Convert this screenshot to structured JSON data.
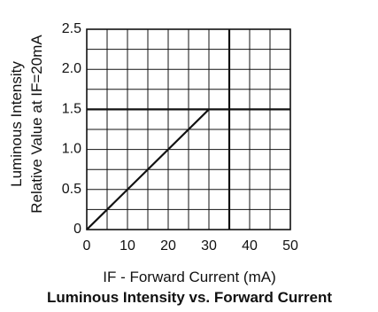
{
  "chart_data": {
    "type": "line",
    "title": "Luminous Intensity vs. Forward Current",
    "xlabel": "IF - Forward Current (mA)",
    "ylabel_line1": "Luminous Intensity",
    "ylabel_line2": "Relative Value at IF=20mA",
    "xlim": [
      0,
      50
    ],
    "ylim": [
      0,
      2.5
    ],
    "x_ticks": [
      "0",
      "10",
      "20",
      "30",
      "40",
      "50"
    ],
    "y_ticks": [
      "0",
      "0.5",
      "1.0",
      "1.5",
      "2.0",
      "2.5"
    ],
    "grid": true,
    "series": [
      {
        "x": [
          0,
          30
        ],
        "y": [
          0,
          1.5
        ]
      }
    ],
    "reference_lines": {
      "x": 35,
      "y": 1.5
    }
  }
}
